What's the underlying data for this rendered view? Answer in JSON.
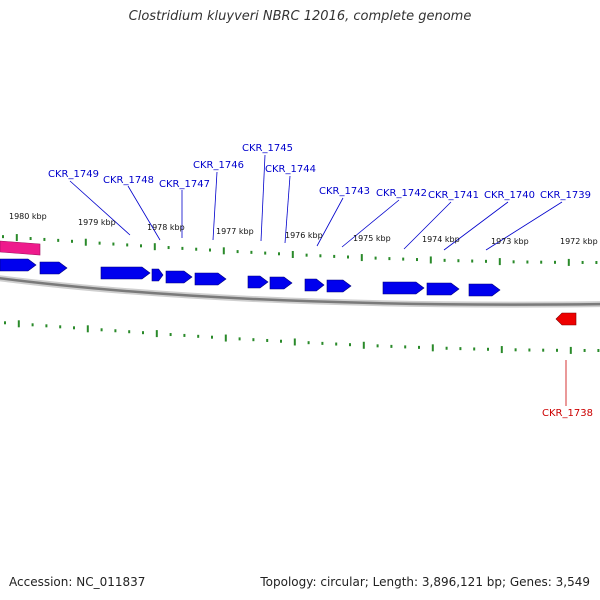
{
  "title": "Clostridium kluyveri NBRC 12016, complete genome",
  "footer": {
    "accession": "Accession: NC_011837",
    "stats": "Topology: circular; Length: 3,896,121 bp; Genes: 3,549"
  },
  "colors": {
    "forward_gene": "#0000ee",
    "reverse_gene": "#ee0000",
    "highlight_gene": "#ee1a8c",
    "tick": "#2a8a2a",
    "backbone": "#888888",
    "forward_label": "#0000cc",
    "reverse_label": "#cc0000"
  },
  "scale_labels": [
    "1980 kbp",
    "1979 kbp",
    "1978 kbp",
    "1977 kbp",
    "1976 kbp",
    "1975 kbp",
    "1974 kbp",
    "1973 kbp",
    "1972 kbp"
  ],
  "gene_labels": {
    "forward": [
      "CKR_1749",
      "CKR_1748",
      "CKR_1747",
      "CKR_1746",
      "CKR_1745",
      "CKR_1744",
      "CKR_1743",
      "CKR_1742",
      "CKR_1741",
      "CKR_1740",
      "CKR_1739"
    ],
    "reverse": [
      "CKR_1738"
    ]
  }
}
